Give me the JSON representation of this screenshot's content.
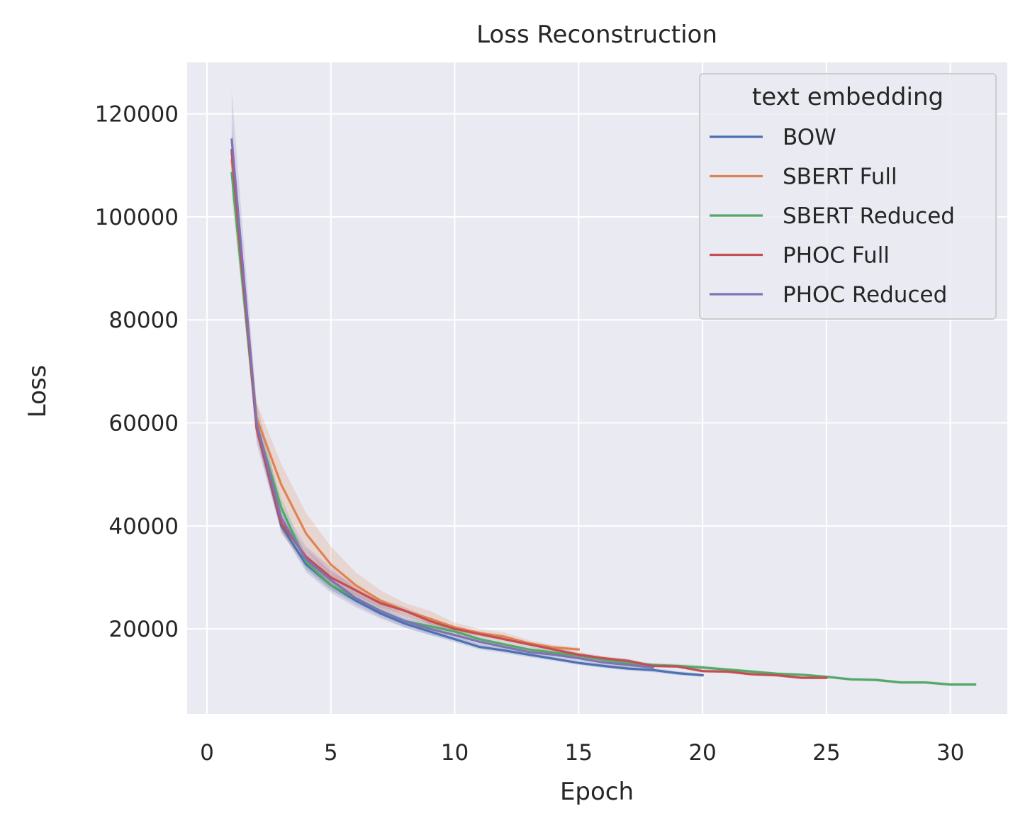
{
  "chart_data": {
    "type": "line",
    "title": "Loss Reconstruction",
    "xlabel": "Epoch",
    "ylabel": "Loss",
    "xlim": [
      -0.8,
      32.3
    ],
    "ylim": [
      3500,
      130000
    ],
    "xticks": [
      0,
      5,
      10,
      15,
      20,
      25,
      30
    ],
    "yticks": [
      20000,
      40000,
      60000,
      80000,
      100000,
      120000
    ],
    "grid": true,
    "background": "#eaeaf2",
    "grid_color": "#ffffff",
    "legend": {
      "title": "text embedding",
      "position": "top-right"
    },
    "series": [
      {
        "name": "BOW",
        "color": "#4c72b0",
        "x": [
          1,
          2,
          3,
          4,
          5,
          6,
          7,
          8,
          9,
          10,
          11,
          12,
          13,
          14,
          15,
          16,
          17,
          18,
          19,
          20
        ],
        "y": [
          113000,
          59000,
          40000,
          32500,
          28500,
          25500,
          23000,
          21000,
          19500,
          18000,
          16500,
          15800,
          15000,
          14200,
          13400,
          12800,
          12300,
          12000,
          11400,
          11000
        ],
        "lower": [
          108000,
          57500,
          39000,
          31500,
          27500,
          24700,
          22300,
          20300,
          18800,
          17400,
          16000,
          15300,
          14500,
          13800,
          13000,
          12400,
          11900,
          11600,
          11000,
          10700
        ],
        "upper": [
          118000,
          60500,
          41000,
          33500,
          29500,
          26300,
          23700,
          21700,
          20200,
          18600,
          17000,
          16300,
          15500,
          14600,
          13800,
          13200,
          12700,
          12400,
          11800,
          11300
        ]
      },
      {
        "name": "SBERT Full",
        "color": "#dd8452",
        "x": [
          1,
          2,
          3,
          4,
          5,
          6,
          7,
          8,
          9,
          10,
          11,
          12,
          13,
          14,
          15
        ],
        "y": [
          111000,
          61000,
          48000,
          38500,
          32500,
          28500,
          25500,
          23500,
          22000,
          20300,
          19200,
          18500,
          17200,
          16400,
          16000
        ],
        "lower": [
          106000,
          58000,
          44000,
          35500,
          29500,
          26500,
          24000,
          22300,
          21000,
          19600,
          18600,
          17900,
          16700,
          16000,
          15600
        ],
        "upper": [
          116000,
          64000,
          52000,
          42500,
          36000,
          31000,
          27500,
          25000,
          23500,
          21200,
          20000,
          19300,
          17800,
          16900,
          16400
        ]
      },
      {
        "name": "SBERT Reduced",
        "color": "#55a868",
        "x": [
          1,
          2,
          3,
          4,
          5,
          6,
          7,
          8,
          9,
          10,
          11,
          12,
          13,
          14,
          15,
          16,
          17,
          18,
          19,
          20,
          21,
          22,
          23,
          24,
          25,
          26,
          27,
          28,
          29,
          30,
          31
        ],
        "y": [
          108500,
          59500,
          43500,
          33000,
          28500,
          26000,
          23500,
          21500,
          20500,
          19500,
          18000,
          17000,
          16000,
          15400,
          14800,
          14000,
          13400,
          13000,
          12800,
          12500,
          12100,
          11700,
          11300,
          11100,
          10700,
          10200,
          10100,
          9600,
          9600,
          9200,
          9200
        ],
        "lower": [
          104000,
          58000,
          41500,
          31800,
          27600,
          25200,
          22800,
          20900,
          19900,
          18900,
          17500,
          16500,
          15500,
          14900,
          14300,
          13500,
          13000,
          12600,
          12400,
          12100,
          11800,
          11400,
          11000,
          10800,
          10400,
          9900,
          9800,
          9300,
          9300,
          8900,
          8900
        ],
        "upper": [
          113000,
          61000,
          45500,
          34200,
          29400,
          26800,
          24200,
          22100,
          21100,
          20100,
          18500,
          17500,
          16500,
          15900,
          15300,
          14500,
          13800,
          13400,
          13200,
          12900,
          12400,
          12000,
          11600,
          11400,
          11000,
          10500,
          10400,
          9900,
          9900,
          9500,
          9500
        ]
      },
      {
        "name": "PHOC Full",
        "color": "#c44e52",
        "x": [
          1,
          2,
          3,
          4,
          5,
          6,
          7,
          8,
          9,
          10,
          11,
          12,
          13,
          14,
          15,
          16,
          17,
          18,
          19,
          20,
          21,
          22,
          23,
          24,
          25
        ],
        "y": [
          112500,
          59000,
          40500,
          34000,
          30000,
          27500,
          25000,
          23500,
          21500,
          20000,
          19000,
          18000,
          17000,
          16000,
          15000,
          14300,
          13800,
          12800,
          12700,
          11800,
          11700,
          11200,
          11000,
          10500,
          10500
        ],
        "lower": [
          109000,
          57000,
          38500,
          32500,
          28800,
          26500,
          24200,
          22800,
          20900,
          19400,
          18500,
          17500,
          16500,
          15500,
          14500,
          13900,
          13400,
          12500,
          12400,
          11500,
          11400,
          10900,
          10700,
          10200,
          10200
        ],
        "upper": [
          116000,
          61000,
          42500,
          35500,
          31200,
          28500,
          25800,
          24200,
          22100,
          20600,
          19500,
          18500,
          17500,
          16500,
          15500,
          14700,
          14200,
          13100,
          13000,
          12100,
          12000,
          11500,
          11300,
          10800,
          10800
        ]
      },
      {
        "name": "PHOC Reduced",
        "color": "#8172b3",
        "x": [
          1,
          2,
          3,
          4,
          5,
          6,
          7,
          8,
          9,
          10,
          11,
          12,
          13,
          14,
          15,
          16,
          17,
          18
        ],
        "y": [
          115000,
          60000,
          41500,
          33500,
          29500,
          26000,
          23500,
          21500,
          20000,
          18800,
          17500,
          16500,
          15500,
          15000,
          14300,
          13500,
          13000,
          12500
        ],
        "lower": [
          106000,
          56000,
          39000,
          31000,
          27000,
          24200,
          22000,
          20200,
          18800,
          17800,
          16700,
          15800,
          14900,
          14400,
          13800,
          13000,
          12500,
          12100
        ],
        "upper": [
          124500,
          64000,
          44000,
          36000,
          32000,
          27800,
          25000,
          22800,
          21200,
          19800,
          18300,
          17200,
          16100,
          15600,
          14800,
          14000,
          13500,
          12900
        ]
      }
    ]
  }
}
